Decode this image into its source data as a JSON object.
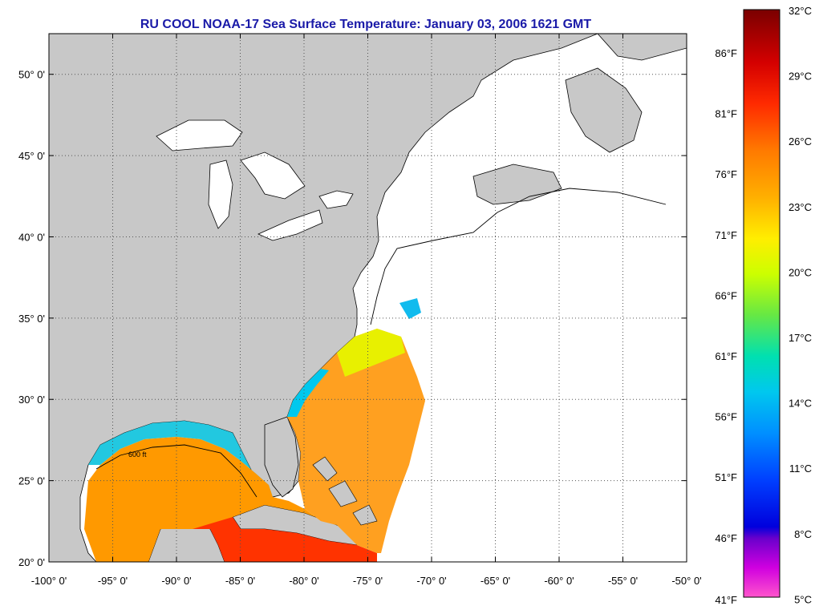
{
  "title": "RU COOL  NOAA-17  Sea Surface Temperature:  January 03, 2006 1621 GMT",
  "map": {
    "lon_range": [
      -100,
      -50
    ],
    "lat_range": [
      20,
      52.5
    ],
    "lat_ticks": [
      {
        "value": 50,
        "label": "50° 0'"
      },
      {
        "value": 45,
        "label": "45° 0'"
      },
      {
        "value": 40,
        "label": "40° 0'"
      },
      {
        "value": 35,
        "label": "35° 0'"
      },
      {
        "value": 30,
        "label": "30° 0'"
      },
      {
        "value": 25,
        "label": "25° 0'"
      },
      {
        "value": 20,
        "label": "20° 0'"
      }
    ],
    "lon_ticks": [
      {
        "value": -100,
        "label": "-100° 0'"
      },
      {
        "value": -95,
        "label": "-95° 0'"
      },
      {
        "value": -90,
        "label": "-90° 0'"
      },
      {
        "value": -85,
        "label": "-85° 0'"
      },
      {
        "value": -80,
        "label": "-80° 0'"
      },
      {
        "value": -75,
        "label": "-75° 0'"
      },
      {
        "value": -70,
        "label": "-70° 0'"
      },
      {
        "value": -65,
        "label": "-65° 0'"
      },
      {
        "value": -60,
        "label": "-60° 0'"
      },
      {
        "value": -55,
        "label": "-55° 0'"
      },
      {
        "value": -50,
        "label": "-50° 0'"
      }
    ],
    "contour_label": "600 ft",
    "colors": {
      "land": "#c8c8c8",
      "ocean_nodata": "#ffffff",
      "grid": "#555555"
    }
  },
  "colorbar": {
    "celsius": [
      "32°C",
      "29°C",
      "26°C",
      "23°C",
      "20°C",
      "17°C",
      "14°C",
      "11°C",
      "8°C",
      "5°C"
    ],
    "fahrenheit": [
      "86°F",
      "81°F",
      "76°F",
      "71°F",
      "66°F",
      "61°F",
      "56°F",
      "51°F",
      "46°F",
      "41°F"
    ],
    "gradient": [
      "#7a0000",
      "#e00000",
      "#ff4400",
      "#ff9900",
      "#ffdd00",
      "#e8ff00",
      "#99ee00",
      "#22dd88",
      "#00dddd",
      "#00aaff",
      "#0055ff",
      "#0000ee",
      "#8800cc",
      "#ff00ff",
      "#ff66cc"
    ]
  }
}
